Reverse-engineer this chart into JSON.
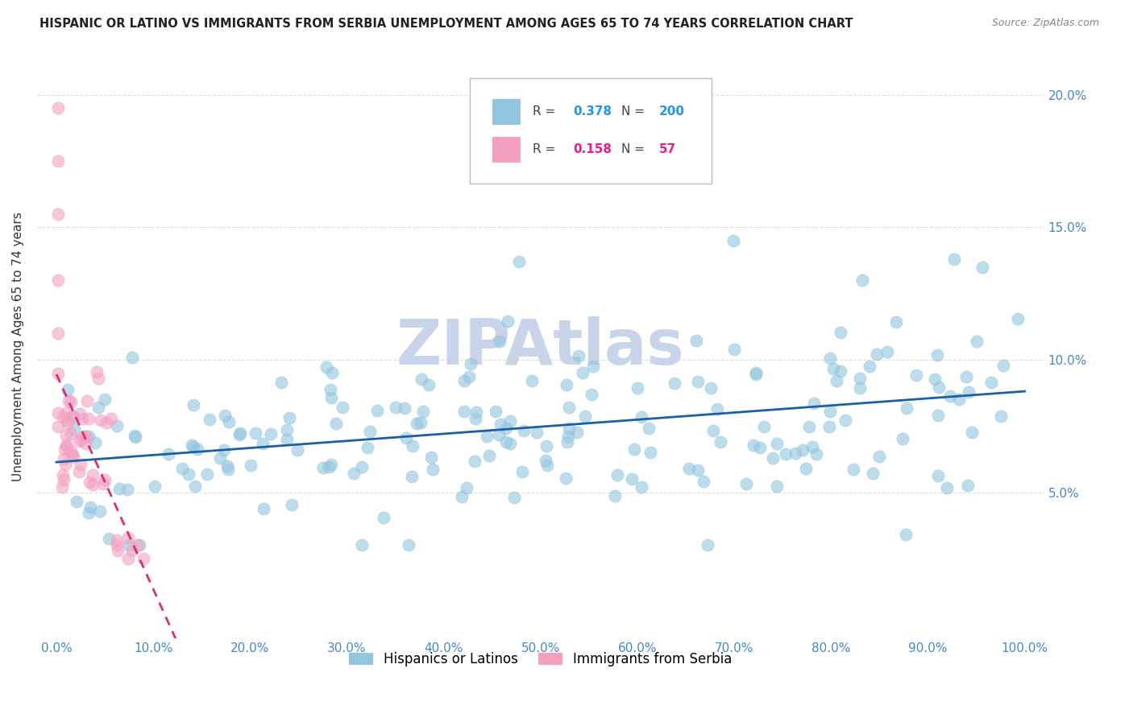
{
  "title": "HISPANIC OR LATINO VS IMMIGRANTS FROM SERBIA UNEMPLOYMENT AMONG AGES 65 TO 74 YEARS CORRELATION CHART",
  "source": "Source: ZipAtlas.com",
  "ylabel": "Unemployment Among Ages 65 to 74 years",
  "xlim": [
    -0.02,
    1.02
  ],
  "ylim": [
    -0.005,
    0.215
  ],
  "yticks": [
    0.05,
    0.1,
    0.15,
    0.2
  ],
  "ytick_labels": [
    "5.0%",
    "10.0%",
    "15.0%",
    "20.0%"
  ],
  "xtick_vals": [
    0.0,
    0.1,
    0.2,
    0.3,
    0.4,
    0.5,
    0.6,
    0.7,
    0.8,
    0.9,
    1.0
  ],
  "xtick_labels": [
    "0.0%",
    "10.0%",
    "20.0%",
    "30.0%",
    "40.0%",
    "50.0%",
    "60.0%",
    "70.0%",
    "80.0%",
    "90.0%",
    "100.0%"
  ],
  "blue_R": 0.378,
  "blue_N": 200,
  "pink_R": 0.158,
  "pink_N": 57,
  "blue_color": "#92c5de",
  "pink_color": "#f4a0c0",
  "blue_line_color": "#1a5fa8",
  "pink_line_color": "#d63070",
  "legend_R_color_blue": "#2196F3",
  "legend_R_color_pink": "#e91e8c",
  "legend_N_color_blue": "#2196F3",
  "legend_N_color_pink": "#e91e8c",
  "watermark": "ZIPAtlas",
  "watermark_color": "#c8d4e8",
  "background_color": "#ffffff",
  "grid_color": "#dddddd",
  "tick_label_color": "#4488cc",
  "tick_label_color_right": "#4488cc"
}
